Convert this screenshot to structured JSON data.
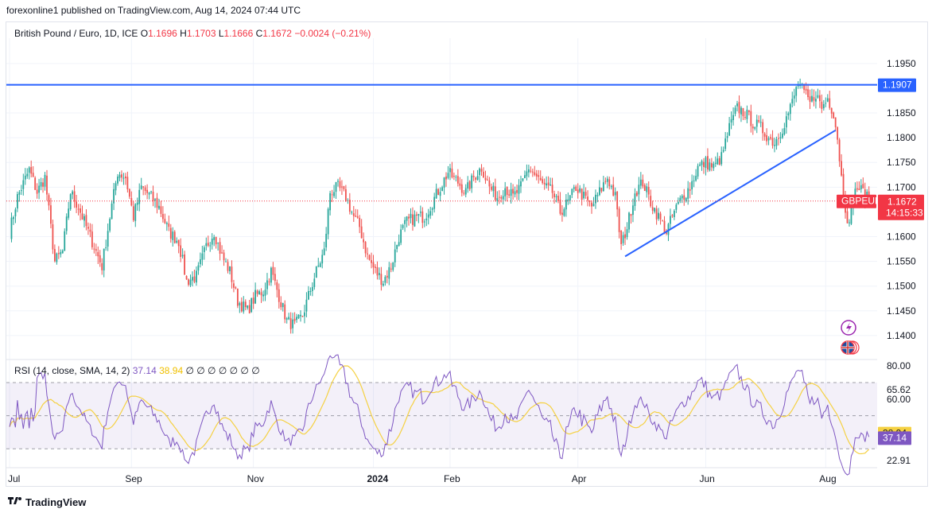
{
  "header": {
    "publisher_line": "forexonline1 published on TradingView.com, Aug 14, 2024 07:44 UTC"
  },
  "legend": {
    "symbol": "British Pound / Euro, 1D, ICE",
    "open_label": "O",
    "open": "1.1696",
    "high_label": "H",
    "high": "1.1703",
    "low_label": "L",
    "low": "1.1666",
    "close_label": "C",
    "close": "1.1672",
    "change": "−0.0024 (−0.21%)"
  },
  "rsi_legend": {
    "label": "RSI (14, close, SMA, 14, 2)",
    "rsi_value": "37.14",
    "sma_value": "38.94",
    "flags": "∅ ∅ ∅ ∅ ∅ ∅ ∅"
  },
  "badges": {
    "resistance": "1.1907",
    "ticker": "GBPEUR",
    "price": "1.1672",
    "countdown": "14:15:33",
    "rsi_sma": "38.94",
    "rsi_value": "37.14"
  },
  "colors": {
    "up": "#26a69a",
    "down": "#ef5350",
    "trend": "#2962ff",
    "rsi": "#7e57c2",
    "rsi_sma": "#f5d142",
    "price_line": "#f23645"
  },
  "footer": {
    "brand": "TradingView"
  },
  "chart_data": [
    {
      "type": "candlestick",
      "title": "British Pound / Euro, 1D, ICE",
      "x_tick_labels": [
        "Jul",
        "Sep",
        "Nov",
        "2024",
        "Feb",
        "Apr",
        "Jun",
        "Aug"
      ],
      "x_tick_days": [
        0,
        62,
        124,
        185,
        224,
        289,
        354,
        415
      ],
      "y_tick_labels": [
        "1.1950",
        "1.1850",
        "1.1800",
        "1.1750",
        "1.1700",
        "1.1600",
        "1.1550",
        "1.1500",
        "1.1450",
        "1.1400"
      ],
      "ylim": [
        1.1358,
        1.1998
      ],
      "resistance_level": 1.1907,
      "last_close": 1.1672,
      "trendline": [
        {
          "day": 313,
          "value": 1.156
        },
        {
          "day": 420,
          "value": 1.1815
        }
      ],
      "anchors": [
        {
          "day": 0,
          "close": 1.161
        },
        {
          "day": 4,
          "close": 1.168
        },
        {
          "day": 10,
          "close": 1.1735
        },
        {
          "day": 14,
          "close": 1.169
        },
        {
          "day": 18,
          "close": 1.172
        },
        {
          "day": 23,
          "close": 1.155
        },
        {
          "day": 27,
          "close": 1.157
        },
        {
          "day": 31,
          "close": 1.169
        },
        {
          "day": 35,
          "close": 1.166
        },
        {
          "day": 39,
          "close": 1.162
        },
        {
          "day": 43,
          "close": 1.158
        },
        {
          "day": 47,
          "close": 1.154
        },
        {
          "day": 51,
          "close": 1.164
        },
        {
          "day": 55,
          "close": 1.173
        },
        {
          "day": 59,
          "close": 1.172
        },
        {
          "day": 63,
          "close": 1.164
        },
        {
          "day": 67,
          "close": 1.17
        },
        {
          "day": 72,
          "close": 1.168
        },
        {
          "day": 76,
          "close": 1.166
        },
        {
          "day": 81,
          "close": 1.161
        },
        {
          "day": 86,
          "close": 1.159
        },
        {
          "day": 90,
          "close": 1.151
        },
        {
          "day": 95,
          "close": 1.152
        },
        {
          "day": 100,
          "close": 1.158
        },
        {
          "day": 104,
          "close": 1.161
        },
        {
          "day": 108,
          "close": 1.156
        },
        {
          "day": 112,
          "close": 1.153
        },
        {
          "day": 116,
          "close": 1.147
        },
        {
          "day": 121,
          "close": 1.145
        },
        {
          "day": 125,
          "close": 1.148
        },
        {
          "day": 129,
          "close": 1.149
        },
        {
          "day": 133,
          "close": 1.153
        },
        {
          "day": 137,
          "close": 1.148
        },
        {
          "day": 141,
          "close": 1.143
        },
        {
          "day": 145,
          "close": 1.142
        },
        {
          "day": 149,
          "close": 1.144
        },
        {
          "day": 152,
          "close": 1.148
        },
        {
          "day": 156,
          "close": 1.153
        },
        {
          "day": 160,
          "close": 1.157
        },
        {
          "day": 163,
          "close": 1.169
        },
        {
          "day": 167,
          "close": 1.17
        },
        {
          "day": 171,
          "close": 1.168
        },
        {
          "day": 175,
          "close": 1.164
        },
        {
          "day": 178,
          "close": 1.162
        },
        {
          "day": 182,
          "close": 1.156
        },
        {
          "day": 186,
          "close": 1.153
        },
        {
          "day": 190,
          "close": 1.151
        },
        {
          "day": 194,
          "close": 1.154
        },
        {
          "day": 198,
          "close": 1.16
        },
        {
          "day": 202,
          "close": 1.163
        },
        {
          "day": 207,
          "close": 1.164
        },
        {
          "day": 211,
          "close": 1.164
        },
        {
          "day": 215,
          "close": 1.167
        },
        {
          "day": 219,
          "close": 1.17
        },
        {
          "day": 223,
          "close": 1.173
        },
        {
          "day": 228,
          "close": 1.171
        },
        {
          "day": 232,
          "close": 1.169
        },
        {
          "day": 236,
          "close": 1.172
        },
        {
          "day": 240,
          "close": 1.174
        },
        {
          "day": 244,
          "close": 1.17
        },
        {
          "day": 248,
          "close": 1.168
        },
        {
          "day": 252,
          "close": 1.17
        },
        {
          "day": 256,
          "close": 1.168
        },
        {
          "day": 260,
          "close": 1.17
        },
        {
          "day": 264,
          "close": 1.174
        },
        {
          "day": 268,
          "close": 1.172
        },
        {
          "day": 272,
          "close": 1.17
        },
        {
          "day": 276,
          "close": 1.169
        },
        {
          "day": 280,
          "close": 1.165
        },
        {
          "day": 284,
          "close": 1.167
        },
        {
          "day": 288,
          "close": 1.17
        },
        {
          "day": 292,
          "close": 1.168
        },
        {
          "day": 296,
          "close": 1.166
        },
        {
          "day": 300,
          "close": 1.169
        },
        {
          "day": 304,
          "close": 1.172
        },
        {
          "day": 308,
          "close": 1.168
        },
        {
          "day": 311,
          "close": 1.158
        },
        {
          "day": 314,
          "close": 1.162
        },
        {
          "day": 318,
          "close": 1.169
        },
        {
          "day": 322,
          "close": 1.171
        },
        {
          "day": 326,
          "close": 1.167
        },
        {
          "day": 330,
          "close": 1.164
        },
        {
          "day": 334,
          "close": 1.161
        },
        {
          "day": 338,
          "close": 1.165
        },
        {
          "day": 342,
          "close": 1.168
        },
        {
          "day": 346,
          "close": 1.17
        },
        {
          "day": 350,
          "close": 1.174
        },
        {
          "day": 354,
          "close": 1.175
        },
        {
          "day": 358,
          "close": 1.174
        },
        {
          "day": 362,
          "close": 1.176
        },
        {
          "day": 366,
          "close": 1.182
        },
        {
          "day": 370,
          "close": 1.186
        },
        {
          "day": 374,
          "close": 1.185
        },
        {
          "day": 378,
          "close": 1.183
        },
        {
          "day": 382,
          "close": 1.182
        },
        {
          "day": 386,
          "close": 1.18
        },
        {
          "day": 389,
          "close": 1.179
        },
        {
          "day": 393,
          "close": 1.182
        },
        {
          "day": 397,
          "close": 1.186
        },
        {
          "day": 401,
          "close": 1.191
        },
        {
          "day": 404,
          "close": 1.189
        },
        {
          "day": 407,
          "close": 1.187
        },
        {
          "day": 410,
          "close": 1.189
        },
        {
          "day": 413,
          "close": 1.186
        },
        {
          "day": 416,
          "close": 1.188
        },
        {
          "day": 419,
          "close": 1.185
        },
        {
          "day": 421,
          "close": 1.18
        },
        {
          "day": 423,
          "close": 1.172
        },
        {
          "day": 425,
          "close": 1.166
        },
        {
          "day": 427,
          "close": 1.162
        },
        {
          "day": 429,
          "close": 1.168
        },
        {
          "day": 431,
          "close": 1.17
        },
        {
          "day": 434,
          "close": 1.169
        },
        {
          "day": 437,
          "close": 1.1672
        }
      ]
    },
    {
      "type": "line",
      "title": "RSI (14, close, SMA, 14, 2)",
      "y_tick_labels": [
        "80.00",
        "65.62",
        "60.00",
        "22.91"
      ],
      "ylim": [
        20,
        82
      ],
      "band": [
        30,
        70
      ],
      "middle_line": 50,
      "last_rsi": 37.14,
      "last_sma": 38.94
    }
  ]
}
